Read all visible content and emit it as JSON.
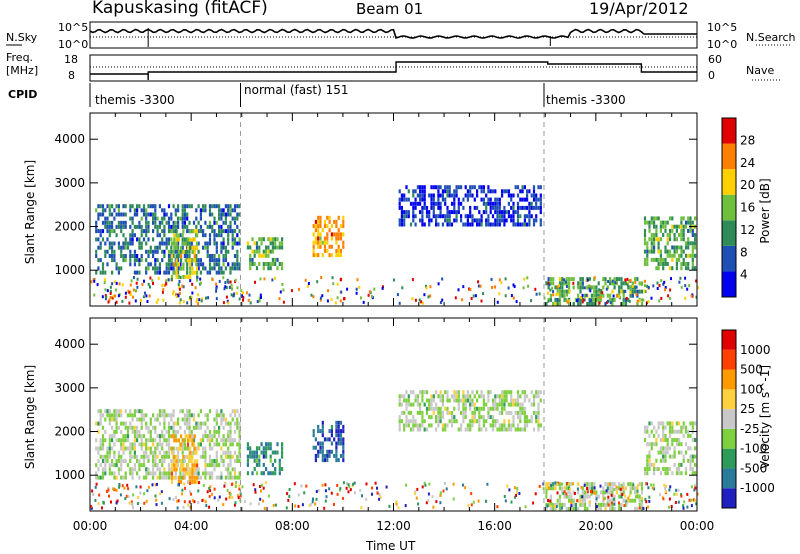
{
  "header": {
    "station": "Kapuskasing (fitACF)",
    "beam": "Beam 01",
    "date": "19/Apr/2012"
  },
  "noise_panel": {
    "left_label": "N.Sky",
    "right_label": "N.Search",
    "left_ticks": [
      "10^5",
      "10^0"
    ],
    "right_ticks": [
      "10^5",
      "10^0"
    ]
  },
  "freq_panel": {
    "left_label_1": "Freq.",
    "left_label_2": "[MHz]",
    "right_label": "Nave",
    "left_ticks": [
      "18",
      "8"
    ],
    "right_ticks": [
      "60",
      "0"
    ]
  },
  "cpid_panel": {
    "label": "CPID",
    "segments": [
      "themis -3300",
      "normal (fast) 151",
      "themis -3300"
    ]
  },
  "colors": {
    "axis": "#000000",
    "dashed_marker": "#9a9a9a",
    "ground_scatter": "#c8c8c8"
  },
  "chart_data": [
    {
      "type": "heatmap",
      "title": "Power",
      "ylabel": "Slant Range [km]",
      "xlabel": "Time UT",
      "x_ticks": [
        "00:00",
        "04:00",
        "08:00",
        "12:00",
        "16:00",
        "20:00",
        "00:00"
      ],
      "y_ticks": [
        "1000",
        "2000",
        "3000",
        "4000"
      ],
      "ylim": [
        180,
        4600
      ],
      "xlim_hours": [
        0,
        24
      ],
      "colorbar_label": "Power [dB]",
      "colorbar_ticks": [
        "28",
        "24",
        "20",
        "16",
        "12",
        "8",
        "4"
      ],
      "colorbar_colors": [
        "#0000ee",
        "#1e4fb4",
        "#2e8b57",
        "#6fbf3f",
        "#ffd000",
        "#ff7f00",
        "#e00000"
      ],
      "features": [
        {
          "t": [
            0.2,
            5.9
          ],
          "r": [
            900,
            2500
          ],
          "level": 2
        },
        {
          "t": [
            3.2,
            4.2
          ],
          "r": [
            800,
            1900
          ],
          "level": 4
        },
        {
          "t": [
            6.2,
            7.6
          ],
          "r": [
            1000,
            1700
          ],
          "level": 3
        },
        {
          "t": [
            8.8,
            10.0
          ],
          "r": [
            1300,
            2200
          ],
          "level": 5
        },
        {
          "t": [
            12.2,
            17.8
          ],
          "r": [
            2000,
            2900
          ],
          "level": 1
        },
        {
          "t": [
            18.0,
            21.8
          ],
          "r": [
            180,
            800
          ],
          "level": 3
        },
        {
          "t": [
            21.9,
            23.9
          ],
          "r": [
            1000,
            2200
          ],
          "level": 3
        }
      ]
    },
    {
      "type": "heatmap",
      "title": "Velocity",
      "ylabel": "Slant Range [km]",
      "xlabel": "Time UT",
      "x_ticks": [
        "00:00",
        "04:00",
        "08:00",
        "12:00",
        "16:00",
        "20:00",
        "00:00"
      ],
      "y_ticks": [
        "1000",
        "2000",
        "3000",
        "4000"
      ],
      "ylim": [
        180,
        4600
      ],
      "xlim_hours": [
        0,
        24
      ],
      "colorbar_label": "Velocity [m s^-1]",
      "colorbar_ticks": [
        "1000",
        "500",
        "100",
        "25",
        "-25",
        "-100",
        "-500",
        "-1000"
      ],
      "colorbar_colors": [
        "#2020c0",
        "#2a7a9a",
        "#2e9b5a",
        "#7fd040",
        "#c8c8c8",
        "#ffd040",
        "#ff9a00",
        "#ff4000",
        "#e00000"
      ],
      "features": [
        {
          "t": [
            0.2,
            5.9
          ],
          "r": [
            900,
            2500
          ],
          "level": 4
        },
        {
          "t": [
            3.2,
            4.2
          ],
          "r": [
            800,
            1900
          ],
          "level": 6
        },
        {
          "t": [
            6.2,
            7.6
          ],
          "r": [
            1000,
            1700
          ],
          "level": 2
        },
        {
          "t": [
            8.8,
            10.0
          ],
          "r": [
            1300,
            2200
          ],
          "level": 1
        },
        {
          "t": [
            12.2,
            17.8
          ],
          "r": [
            2000,
            2900
          ],
          "level": 4
        },
        {
          "t": [
            18.0,
            21.8
          ],
          "r": [
            180,
            800
          ],
          "level": 4
        },
        {
          "t": [
            21.9,
            23.9
          ],
          "r": [
            1000,
            2200
          ],
          "level": 4
        }
      ]
    }
  ]
}
